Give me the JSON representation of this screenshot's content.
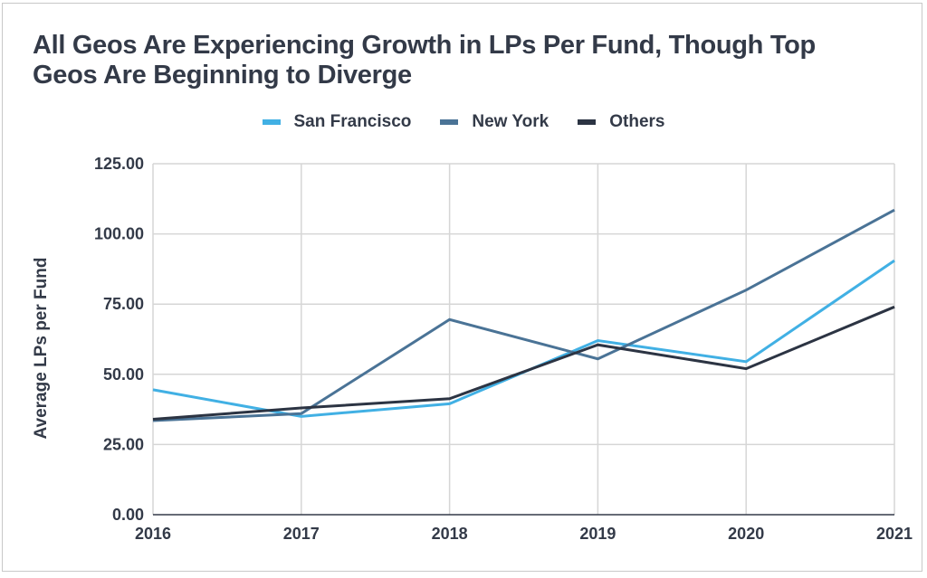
{
  "chart_data": {
    "type": "line",
    "title": "All Geos Are Experiencing Growth in LPs Per Fund, Though Top Geos Are Beginning to Diverge",
    "xlabel": "",
    "ylabel": "Average LPs per Fund",
    "x": [
      "2016",
      "2017",
      "2018",
      "2019",
      "2020",
      "2021"
    ],
    "ylim": [
      0,
      125
    ],
    "yticks": [
      0,
      25,
      50,
      75,
      100,
      125
    ],
    "ytick_labels": [
      "0.00",
      "25.00",
      "50.00",
      "75.00",
      "100.00",
      "125.00"
    ],
    "grid": true,
    "legend_position": "top-center",
    "series": [
      {
        "name": "San Francisco",
        "color": "#41b0e4",
        "values": [
          44.5,
          35.0,
          39.5,
          62.0,
          54.5,
          90.5
        ]
      },
      {
        "name": "New York",
        "color": "#4a7396",
        "values": [
          33.5,
          36.0,
          69.5,
          55.5,
          80.0,
          108.5
        ]
      },
      {
        "name": "Others",
        "color": "#2c3443",
        "values": [
          34.0,
          38.0,
          41.3,
          60.5,
          52.0,
          74.0
        ]
      }
    ]
  }
}
